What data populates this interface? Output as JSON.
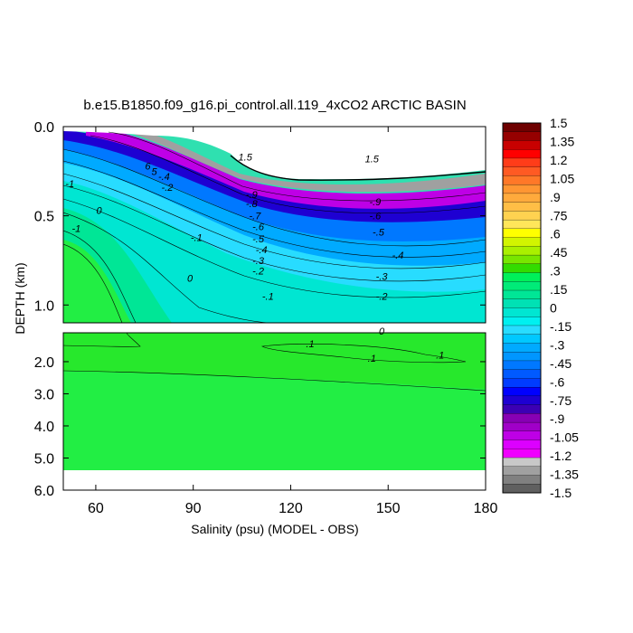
{
  "chart_data": {
    "type": "contour",
    "title": "b.e15.B1850.f09_g16.pi_control.all.119_4xCO2 ARCTIC BASIN",
    "xlabel": "Salinity (psu) (MODEL - OBS)",
    "ylabel": "DEPTH (km)",
    "xlim": [
      50,
      180
    ],
    "x_ticks": [
      "60",
      "90",
      "120",
      "150",
      "180"
    ],
    "x_tick_values": [
      60,
      90,
      120,
      150,
      180
    ],
    "upper_panel": {
      "ylim": [
        0.0,
        1.1
      ],
      "y_ticks": [
        "0.0",
        "0.5",
        "1.0"
      ],
      "y_tick_values": [
        0.0,
        0.5,
        1.0
      ]
    },
    "lower_panel": {
      "ylim": [
        1.1,
        6.0
      ],
      "y_ticks": [
        "2.0",
        "3.0",
        "4.0",
        "5.0",
        "6.0"
      ],
      "y_tick_values": [
        2.0,
        3.0,
        4.0,
        5.0,
        6.0
      ]
    },
    "colorbar": {
      "min": -1.5,
      "max": 1.5,
      "step": 0.075,
      "labels": [
        "1.5",
        "1.35",
        "1.2",
        "1.05",
        ".9",
        ".75",
        ".6",
        ".45",
        ".3",
        ".15",
        "0",
        "-.15",
        "-.3",
        "-.45",
        "-.6",
        "-.75",
        "-.9",
        "-1.05",
        "-1.2",
        "-1.35",
        "-1.5"
      ],
      "colors": [
        "#6e0000",
        "#960000",
        "#c80000",
        "#ff0000",
        "#ff3c19",
        "#ff5a23",
        "#ff7828",
        "#ff9632",
        "#ffaa3c",
        "#ffbe46",
        "#ffd250",
        "#ffe65a",
        "#ffff00",
        "#d2f500",
        "#aaf000",
        "#78e600",
        "#32dc00",
        "#00f05a",
        "#00eb78",
        "#00e696",
        "#00e1b4",
        "#00e6d2",
        "#00f0f0",
        "#28dcff",
        "#00c8ff",
        "#00aaff",
        "#0096ff",
        "#0078ff",
        "#005aff",
        "#003cff",
        "#0000ff",
        "#1e00d2",
        "#3c00b4",
        "#8700b4",
        "#a000c8",
        "#be00e6",
        "#dc00ff",
        "#f000ff",
        "#c8c8c8",
        "#a0a0a0",
        "#808080",
        "#606060"
      ]
    },
    "contour_labels": {
      "upper": [
        {
          "text": "1.5",
          "x": 106,
          "y": 0.19
        },
        {
          "text": "1.5",
          "x": 145,
          "y": 0.2
        },
        {
          "text": "-1",
          "x": 52,
          "y": 0.34
        },
        {
          "text": "0",
          "x": 61,
          "y": 0.49
        },
        {
          "text": "-1",
          "x": 54,
          "y": 0.59
        },
        {
          "text": "-.9",
          "x": 108,
          "y": 0.4
        },
        {
          "text": "-.8",
          "x": 108,
          "y": 0.45
        },
        {
          "text": "-.7",
          "x": 109,
          "y": 0.52
        },
        {
          "text": "-.6",
          "x": 110,
          "y": 0.58
        },
        {
          "text": "-.5",
          "x": 110,
          "y": 0.65
        },
        {
          "text": "-.4",
          "x": 111,
          "y": 0.71
        },
        {
          "text": "-.3",
          "x": 110,
          "y": 0.77
        },
        {
          "text": "-.2",
          "x": 110,
          "y": 0.83
        },
        {
          "text": "-.1",
          "x": 113,
          "y": 0.97
        },
        {
          "text": "-.9",
          "x": 146,
          "y": 0.44
        },
        {
          "text": "-.6",
          "x": 146,
          "y": 0.52
        },
        {
          "text": "-.5",
          "x": 147,
          "y": 0.61
        },
        {
          "text": "-.4",
          "x": 153,
          "y": 0.74
        },
        {
          "text": "-.3",
          "x": 148,
          "y": 0.86
        },
        {
          "text": "-.2",
          "x": 148,
          "y": 0.97
        },
        {
          "text": "-.1",
          "x": 91,
          "y": 0.64
        },
        {
          "text": "0",
          "x": 89,
          "y": 0.87
        },
        {
          "text": "-.4",
          "x": 81,
          "y": 0.3
        },
        {
          "text": "-.2",
          "x": 82,
          "y": 0.36
        },
        {
          "text": "6",
          "x": 76,
          "y": 0.24
        },
        {
          "text": "5",
          "x": 78,
          "y": 0.27
        }
      ],
      "lower": [
        {
          "text": "0",
          "x": 148,
          "y": 1.15
        },
        {
          "text": ".1",
          "x": 126,
          "y": 1.55
        },
        {
          "text": ".1",
          "x": 145,
          "y": 2.0
        },
        {
          "text": ".1",
          "x": 166,
          "y": 1.9
        }
      ]
    }
  }
}
